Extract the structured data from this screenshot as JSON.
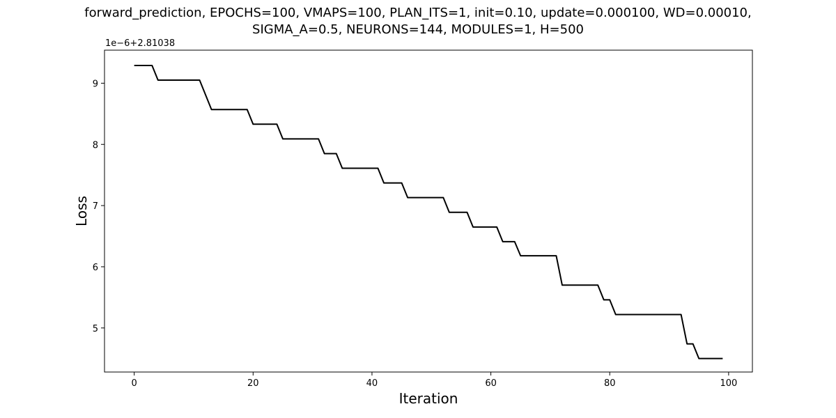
{
  "chart_data": {
    "type": "line",
    "title_line1": "forward_prediction, EPOCHS=100, VMAPS=100, PLAN_ITS=1, init=0.10, update=0.000100, WD=0.00010,",
    "title_line2": "SIGMA_A=0.5, NEURONS=144, MODULES=1, H=500",
    "xlabel": "Iteration",
    "ylabel": "Loss",
    "y_offset_label": "1e−6+2.81038",
    "xlim": [
      -5,
      104
    ],
    "ylim": [
      4.28,
      9.54
    ],
    "xticks": [
      0,
      20,
      40,
      60,
      80,
      100
    ],
    "yticks": [
      5,
      6,
      7,
      8,
      9
    ],
    "x_tick_labels": [
      "0",
      "20",
      "40",
      "60",
      "80",
      "100"
    ],
    "y_tick_labels": [
      "5",
      "6",
      "7",
      "8",
      "9"
    ],
    "grid": false,
    "legend": "none",
    "line_color": "#000000",
    "series": [
      {
        "x": [
          0,
          1,
          2,
          3,
          4,
          5,
          6,
          7,
          8,
          9,
          10,
          11,
          12,
          13,
          14,
          15,
          16,
          17,
          18,
          19,
          20,
          21,
          22,
          23,
          24,
          25,
          26,
          27,
          28,
          29,
          30,
          31,
          32,
          33,
          34,
          35,
          36,
          37,
          38,
          39,
          40,
          41,
          42,
          43,
          44,
          45,
          46,
          47,
          48,
          49,
          50,
          51,
          52,
          53,
          54,
          55,
          56,
          57,
          58,
          59,
          60,
          61,
          62,
          63,
          64,
          65,
          66,
          67,
          68,
          69,
          70,
          71,
          72,
          73,
          74,
          75,
          76,
          77,
          78,
          79,
          80,
          81,
          82,
          83,
          84,
          85,
          86,
          87,
          88,
          89,
          90,
          91,
          92,
          93,
          94,
          95,
          96,
          97,
          98,
          99
        ],
        "values": [
          9.29,
          9.29,
          9.29,
          9.29,
          9.05,
          9.05,
          9.05,
          9.05,
          9.05,
          9.05,
          9.05,
          9.05,
          8.81,
          8.57,
          8.57,
          8.57,
          8.57,
          8.57,
          8.57,
          8.57,
          8.33,
          8.33,
          8.33,
          8.33,
          8.33,
          8.09,
          8.09,
          8.09,
          8.09,
          8.09,
          8.09,
          8.09,
          7.85,
          7.85,
          7.85,
          7.61,
          7.61,
          7.61,
          7.61,
          7.61,
          7.61,
          7.61,
          7.37,
          7.37,
          7.37,
          7.37,
          7.13,
          7.13,
          7.13,
          7.13,
          7.13,
          7.13,
          7.13,
          6.89,
          6.89,
          6.89,
          6.89,
          6.65,
          6.65,
          6.65,
          6.65,
          6.65,
          6.41,
          6.41,
          6.41,
          6.18,
          6.18,
          6.18,
          6.18,
          6.18,
          6.18,
          6.18,
          5.7,
          5.7,
          5.7,
          5.7,
          5.7,
          5.7,
          5.7,
          5.46,
          5.46,
          5.22,
          5.22,
          5.22,
          5.22,
          5.22,
          5.22,
          5.22,
          5.22,
          5.22,
          5.22,
          5.22,
          5.22,
          4.74,
          4.74,
          4.5,
          4.5,
          4.5,
          4.5,
          4.5
        ]
      }
    ]
  }
}
